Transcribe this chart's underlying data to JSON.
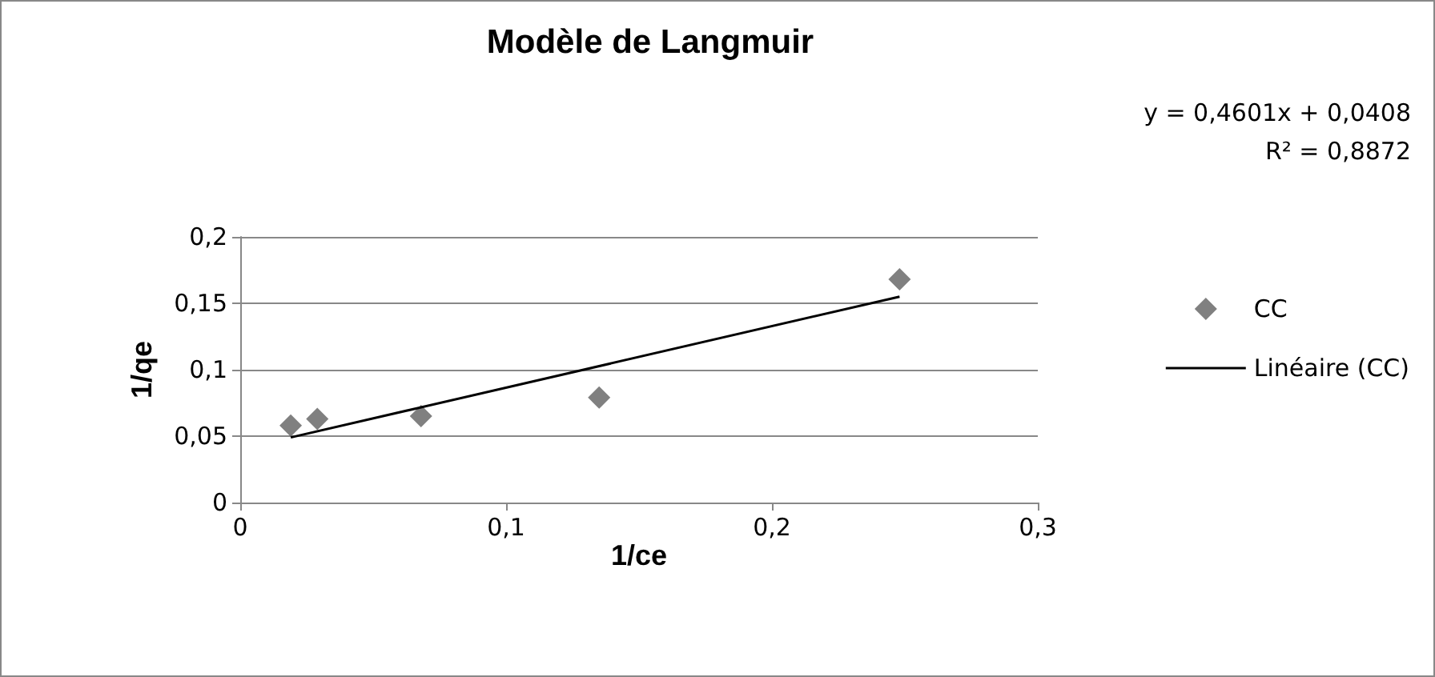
{
  "chart_data": {
    "type": "scatter",
    "title": "Modèle de Langmuir",
    "xlabel": "1/ce",
    "ylabel": "1/qe",
    "annotations": [
      "y = 0,4601x + 0,0408",
      "R² = 0,8872"
    ],
    "series": [
      {
        "name": "CC",
        "color": "#606060",
        "x": [
          0.019,
          0.029,
          0.068,
          0.135,
          0.248
        ],
        "values": [
          0.058,
          0.063,
          0.065,
          0.079,
          0.168
        ]
      },
      {
        "name": "Linéaire (CC)",
        "type": "line",
        "color": "#000000",
        "marker": "none",
        "x": [
          0.019,
          0.248
        ],
        "values": [
          0.049,
          0.155
        ]
      }
    ],
    "xlim": [
      0,
      0.3
    ],
    "xticks": [
      {
        "value": 0,
        "label": "0"
      },
      {
        "value": 0.1,
        "label": "0,1"
      },
      {
        "value": 0.2,
        "label": "0,2"
      },
      {
        "value": 0.3,
        "label": "0,3"
      }
    ],
    "ylim": [
      0,
      0.2
    ],
    "yticks": [
      {
        "value": 0,
        "label": "0"
      },
      {
        "value": 0.05,
        "label": "0,05"
      },
      {
        "value": 0.1,
        "label": "0,1"
      },
      {
        "value": 0.15,
        "label": "0,15"
      },
      {
        "value": 0.2,
        "label": "0,2"
      }
    ],
    "grid": "y",
    "legend": "right",
    "marker": "diamond",
    "line_style": "solid"
  }
}
